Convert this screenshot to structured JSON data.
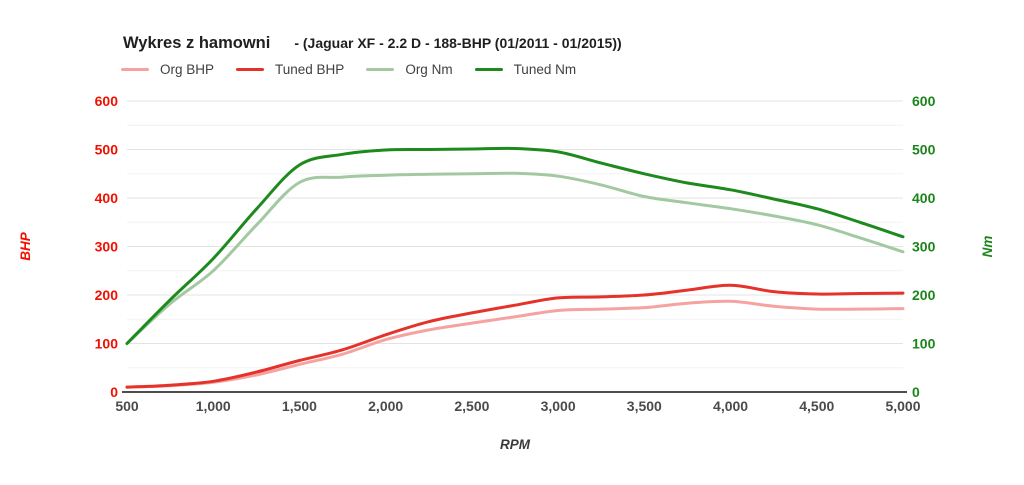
{
  "header": {
    "title": "Wykres z hamowni",
    "subtitle": "- (Jaguar XF - 2.2 D - 188-BHP (01/2011 - 01/2015))"
  },
  "legend": [
    {
      "label": "Org BHP",
      "color": "#F5A3A0"
    },
    {
      "label": "Tuned BHP",
      "color": "#E5322A"
    },
    {
      "label": "Org Nm",
      "color": "#A3C9A2"
    },
    {
      "label": "Tuned Nm",
      "color": "#1E8A1E"
    }
  ],
  "chart_data": {
    "type": "line",
    "x": [
      500,
      750,
      1000,
      1250,
      1500,
      1750,
      2000,
      2250,
      2500,
      2750,
      3000,
      3250,
      3500,
      3750,
      4000,
      4250,
      4500,
      4750,
      5000
    ],
    "series": [
      {
        "name": "Org BHP",
        "axis": "left",
        "color": "#F5A3A0",
        "values": [
          10,
          13,
          20,
          35,
          57,
          78,
          108,
          128,
          142,
          155,
          168,
          171,
          174,
          183,
          187,
          177,
          171,
          171,
          172
        ]
      },
      {
        "name": "Tuned BHP",
        "axis": "left",
        "color": "#E5322A",
        "values": [
          10,
          14,
          22,
          41,
          65,
          87,
          118,
          145,
          163,
          179,
          194,
          196,
          200,
          210,
          220,
          207,
          202,
          203,
          204
        ]
      },
      {
        "name": "Org Nm",
        "axis": "right",
        "color": "#A3C9A2",
        "values": [
          100,
          182,
          250,
          344,
          432,
          443,
          447,
          449,
          450,
          451,
          445,
          427,
          403,
          390,
          378,
          363,
          345,
          318,
          289
        ]
      },
      {
        "name": "Tuned Nm",
        "axis": "right",
        "color": "#1E8A1E",
        "values": [
          100,
          190,
          275,
          377,
          468,
          490,
          499,
          500,
          501,
          502,
          495,
          472,
          450,
          431,
          417,
          398,
          378,
          350,
          320
        ]
      }
    ],
    "x_axis": {
      "label": "RPM",
      "range": [
        500,
        5000
      ],
      "ticks": [
        500,
        1000,
        1500,
        2000,
        2500,
        3000,
        3500,
        4000,
        4500,
        5000
      ],
      "tick_labels": [
        "500",
        "1,000",
        "1,500",
        "2,000",
        "2,500",
        "3,000",
        "3,500",
        "4,000",
        "4,500",
        "5,000"
      ],
      "label_color": "#3a3a3a",
      "tick_color": "#4b4b4b"
    },
    "y_left": {
      "label": "BHP",
      "range": [
        0,
        600
      ],
      "ticks": [
        0,
        100,
        200,
        300,
        400,
        500,
        600
      ],
      "minor_step": 50,
      "color": "#F01000"
    },
    "y_right": {
      "label": "Nm",
      "range": [
        0,
        600
      ],
      "ticks": [
        0,
        100,
        200,
        300,
        400,
        500,
        600
      ],
      "color": "#1B851B"
    },
    "grid": {
      "major_color": "#e3e3e3",
      "minor_color": "#f2f2f2",
      "axis_line_color": "#4d4d4d"
    },
    "legend_position": "top",
    "grid_on": true
  }
}
